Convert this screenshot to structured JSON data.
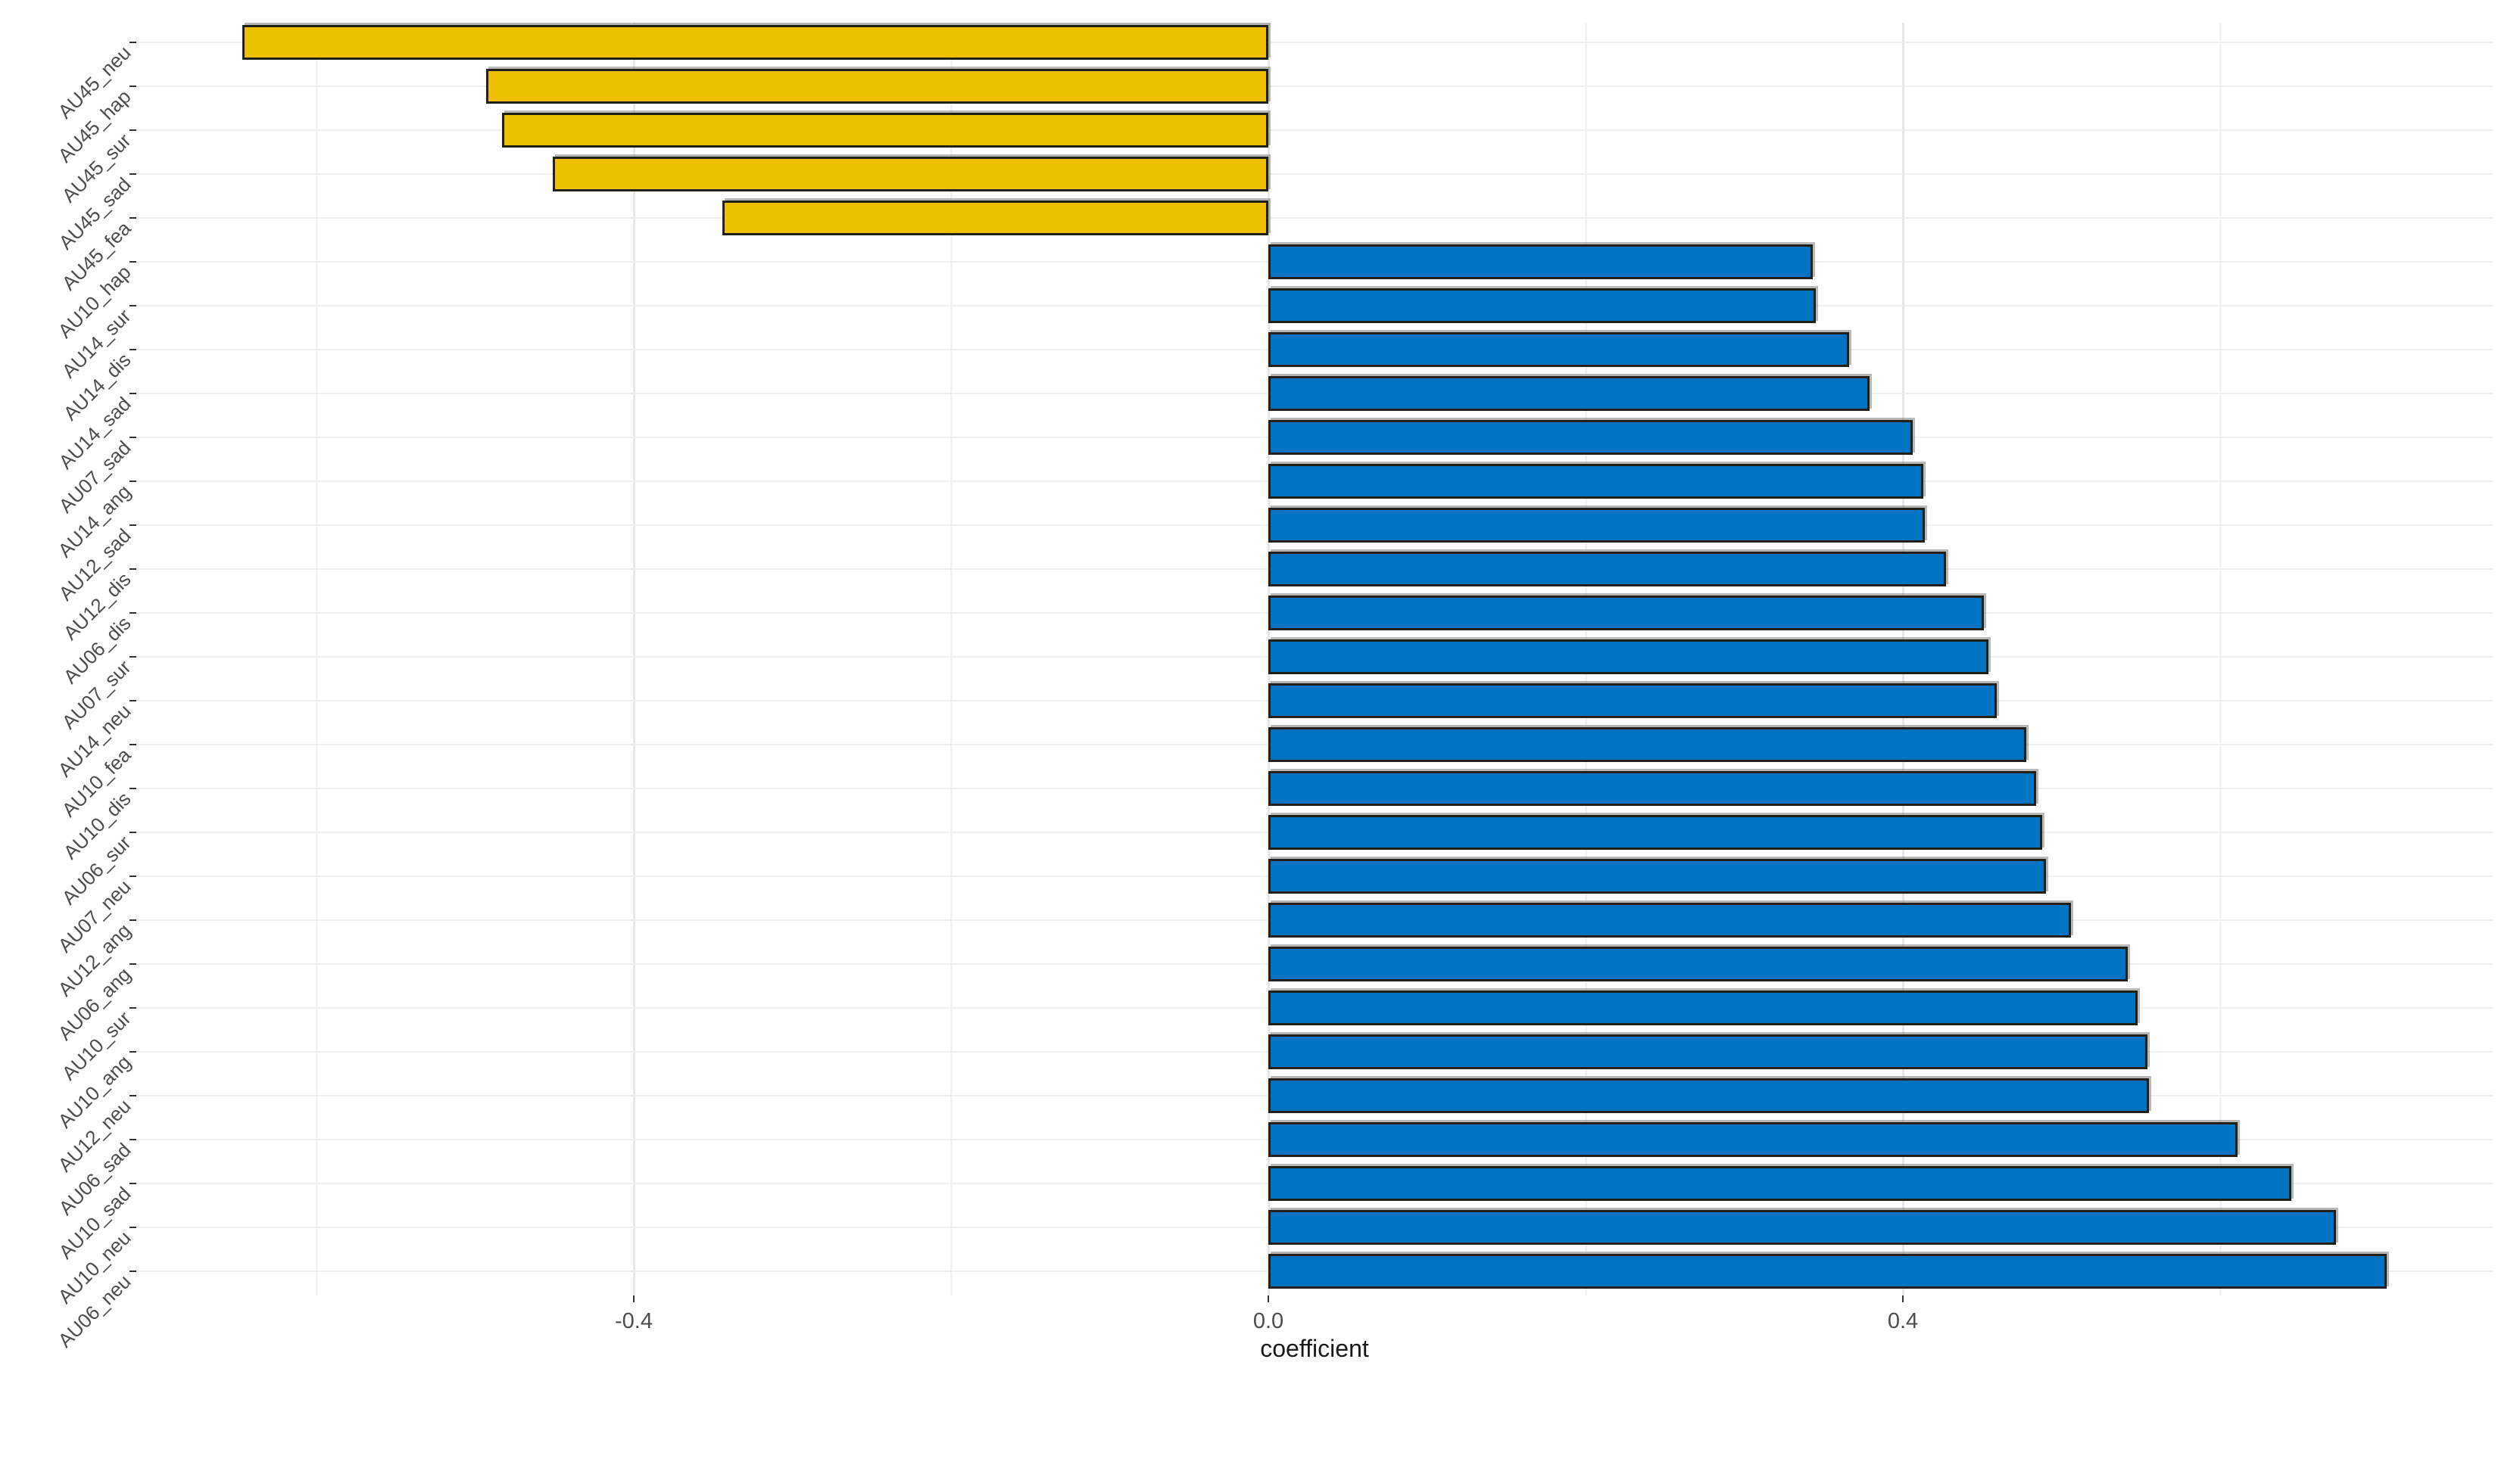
{
  "chart_data": {
    "type": "bar",
    "orientation": "horizontal",
    "title": "",
    "xlabel": "coefficient",
    "ylabel": "",
    "xlim": [
      -0.715,
      0.772
    ],
    "grid": true,
    "legend": "none",
    "x_ticks": [
      {
        "value": -0.4,
        "label": "-0.4"
      },
      {
        "value": 0.0,
        "label": "0.0"
      },
      {
        "value": 0.4,
        "label": "0.4"
      }
    ],
    "x_minor_gridlines": [
      -0.6,
      -0.2,
      0.2,
      0.6
    ],
    "categories_order": "top_to_bottom",
    "categories": [
      "AU45_neu",
      "AU45_hap",
      "AU45_sur",
      "AU45_sad",
      "AU45_fea",
      "AU10_hap",
      "AU14_sur",
      "AU14_dis",
      "AU14_sad",
      "AU07_sad",
      "AU14_ang",
      "AU12_sad",
      "AU12_dis",
      "AU06_dis",
      "AU07_sur",
      "AU14_neu",
      "AU10_fea",
      "AU10_dis",
      "AU06_sur",
      "AU07_neu",
      "AU12_ang",
      "AU06_ang",
      "AU10_sur",
      "AU10_ang",
      "AU12_neu",
      "AU06_sad",
      "AU10_sad",
      "AU10_neu",
      "AU06_neu"
    ],
    "values": [
      -0.647,
      -0.493,
      -0.483,
      -0.451,
      -0.344,
      0.343,
      0.345,
      0.366,
      0.379,
      0.406,
      0.413,
      0.414,
      0.427,
      0.451,
      0.454,
      0.459,
      0.478,
      0.484,
      0.488,
      0.49,
      0.506,
      0.542,
      0.548,
      0.554,
      0.555,
      0.611,
      0.645,
      0.673,
      0.705
    ],
    "bar_groups": [
      "negative",
      "negative",
      "negative",
      "negative",
      "negative",
      "positive",
      "positive",
      "positive",
      "positive",
      "positive",
      "positive",
      "positive",
      "positive",
      "positive",
      "positive",
      "positive",
      "positive",
      "positive",
      "positive",
      "positive",
      "positive",
      "positive",
      "positive",
      "positive",
      "positive",
      "positive",
      "positive",
      "positive",
      "positive"
    ],
    "colors": {
      "positive_bar": "#0073C2",
      "negative_bar": "#EDC100",
      "bar_outline": "#221f14",
      "gridline_major": "#e7e7e7",
      "gridline_minor": "#f3f3f3",
      "gridline_row": "#efefef",
      "tick_mark": "#333333",
      "tick_label": "#4d4d4d",
      "axis_title": "#1a1a1a",
      "background": "#ffffff"
    }
  }
}
